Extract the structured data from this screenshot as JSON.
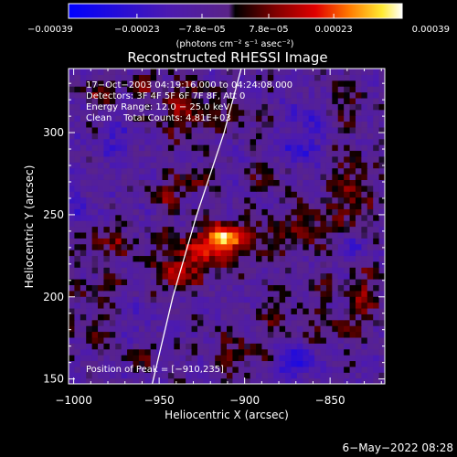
{
  "chart_data": {
    "type": "heatmap",
    "title": "Reconstructed RHESSI Image",
    "xlabel": "Heliocentric X (arcsec)",
    "ylabel": "Heliocentric Y (arcsec)",
    "xlim": [
      -1003,
      -818
    ],
    "ylim": [
      147,
      339
    ],
    "x_ticks": [
      {
        "value": -1000,
        "label": "−1000"
      },
      {
        "value": -950,
        "label": "−950"
      },
      {
        "value": -900,
        "label": "−900"
      },
      {
        "value": -850,
        "label": "−850"
      }
    ],
    "y_ticks": [
      {
        "value": 150,
        "label": "150"
      },
      {
        "value": 200,
        "label": "200"
      },
      {
        "value": 250,
        "label": "250"
      },
      {
        "value": 300,
        "label": "300"
      }
    ],
    "colorbar": {
      "range": [
        -0.00039,
        0.00039
      ],
      "tick_values": [
        -0.00039,
        -0.00023,
        -7.8e-05,
        7.8e-05,
        0.00023,
        0.00039
      ],
      "tick_labels": [
        "−0.00039",
        "−0.00023",
        "−7.8e−05",
        "7.8e−05",
        "0.00023",
        "0.00039"
      ],
      "unit_label": "(photons cm⁻² s⁻¹ asec⁻²)"
    },
    "annotations": [
      "17−Oct−2003 04:19:16.000 to 04:24:08.000",
      "Detectors: 3F 4F 5F 6F 7F 8F, Att 0",
      "Energy Range: 12.0 − 25.0 keV",
      "Clean    Total Counts: 4.81E+03"
    ],
    "peak_label": "Position of Peak = [−910,235]",
    "peak": {
      "x": -910,
      "y": 235,
      "value": 0.00039
    },
    "limb_curve": [
      [
        -954,
        147
      ],
      [
        -942,
        200
      ],
      [
        -928,
        250
      ],
      [
        -912,
        300
      ],
      [
        -902,
        339
      ]
    ],
    "sources": [
      {
        "x": -912,
        "y": 236,
        "sx": 7,
        "sy": 6,
        "amp": 0.00034
      },
      {
        "x": -925,
        "y": 228,
        "sx": 15,
        "sy": 11,
        "amp": 0.00019
      },
      {
        "x": -940,
        "y": 214,
        "sx": 8,
        "sy": 8,
        "amp": 0.00016
      },
      {
        "x": -980,
        "y": 233,
        "sx": 12,
        "sy": 7,
        "amp": 0.00013
      },
      {
        "x": -885,
        "y": 236,
        "sx": 12,
        "sy": 9,
        "amp": 0.00012
      },
      {
        "x": -863,
        "y": 245,
        "sx": 7,
        "sy": 9,
        "amp": 0.00015
      },
      {
        "x": -935,
        "y": 315,
        "sx": 11,
        "sy": 13,
        "amp": 0.00015
      },
      {
        "x": -985,
        "y": 324,
        "sx": 7,
        "sy": 7,
        "amp": 0.00012
      },
      {
        "x": -958,
        "y": 330,
        "sx": 8,
        "sy": 5,
        "amp": 0.0001
      },
      {
        "x": -905,
        "y": 310,
        "sx": 9,
        "sy": 6,
        "amp": 9e-05
      },
      {
        "x": -930,
        "y": 272,
        "sx": 7,
        "sy": 6,
        "amp": 0.00012
      },
      {
        "x": -946,
        "y": 262,
        "sx": 8,
        "sy": 6,
        "amp": 0.00011
      },
      {
        "x": -885,
        "y": 275,
        "sx": 8,
        "sy": 6,
        "amp": 0.0001
      },
      {
        "x": -838,
        "y": 262,
        "sx": 9,
        "sy": 18,
        "amp": 0.00016
      },
      {
        "x": -828,
        "y": 200,
        "sx": 7,
        "sy": 12,
        "amp": 0.00015
      },
      {
        "x": -852,
        "y": 205,
        "sx": 7,
        "sy": 7,
        "amp": 0.0001
      },
      {
        "x": -852,
        "y": 180,
        "sx": 12,
        "sy": 6,
        "amp": 0.00011
      },
      {
        "x": -905,
        "y": 165,
        "sx": 14,
        "sy": 9,
        "amp": 0.00011
      },
      {
        "x": -880,
        "y": 190,
        "sx": 8,
        "sy": 6,
        "amp": 0.0001
      },
      {
        "x": -985,
        "y": 205,
        "sx": 11,
        "sy": 6,
        "amp": 0.0001
      },
      {
        "x": -990,
        "y": 180,
        "sx": 7,
        "sy": 9,
        "amp": 0.0001
      },
      {
        "x": -960,
        "y": 165,
        "sx": 7,
        "sy": 5,
        "amp": 9e-05
      },
      {
        "x": -845,
        "y": 320,
        "sx": 9,
        "sy": 9,
        "amp": 0.0001
      },
      {
        "x": -868,
        "y": 290,
        "sx": 8,
        "sy": 7,
        "amp": -0.00016
      },
      {
        "x": -862,
        "y": 312,
        "sx": 7,
        "sy": 8,
        "amp": -0.00014
      },
      {
        "x": -870,
        "y": 160,
        "sx": 8,
        "sy": 7,
        "amp": -0.00022
      },
      {
        "x": -975,
        "y": 295,
        "sx": 8,
        "sy": 7,
        "amp": -0.00011
      },
      {
        "x": -835,
        "y": 232,
        "sx": 6,
        "sy": 6,
        "amp": -0.00012
      },
      {
        "x": -998,
        "y": 255,
        "sx": 6,
        "sy": 9,
        "amp": -0.00011
      },
      {
        "x": -960,
        "y": 188,
        "sx": 6,
        "sy": 6,
        "amp": -8e-05
      },
      {
        "x": -925,
        "y": 160,
        "sx": 6,
        "sy": 5,
        "amp": -7e-05
      }
    ],
    "background_level": -8e-05,
    "timestamp": "6−May−2022 08:28"
  }
}
